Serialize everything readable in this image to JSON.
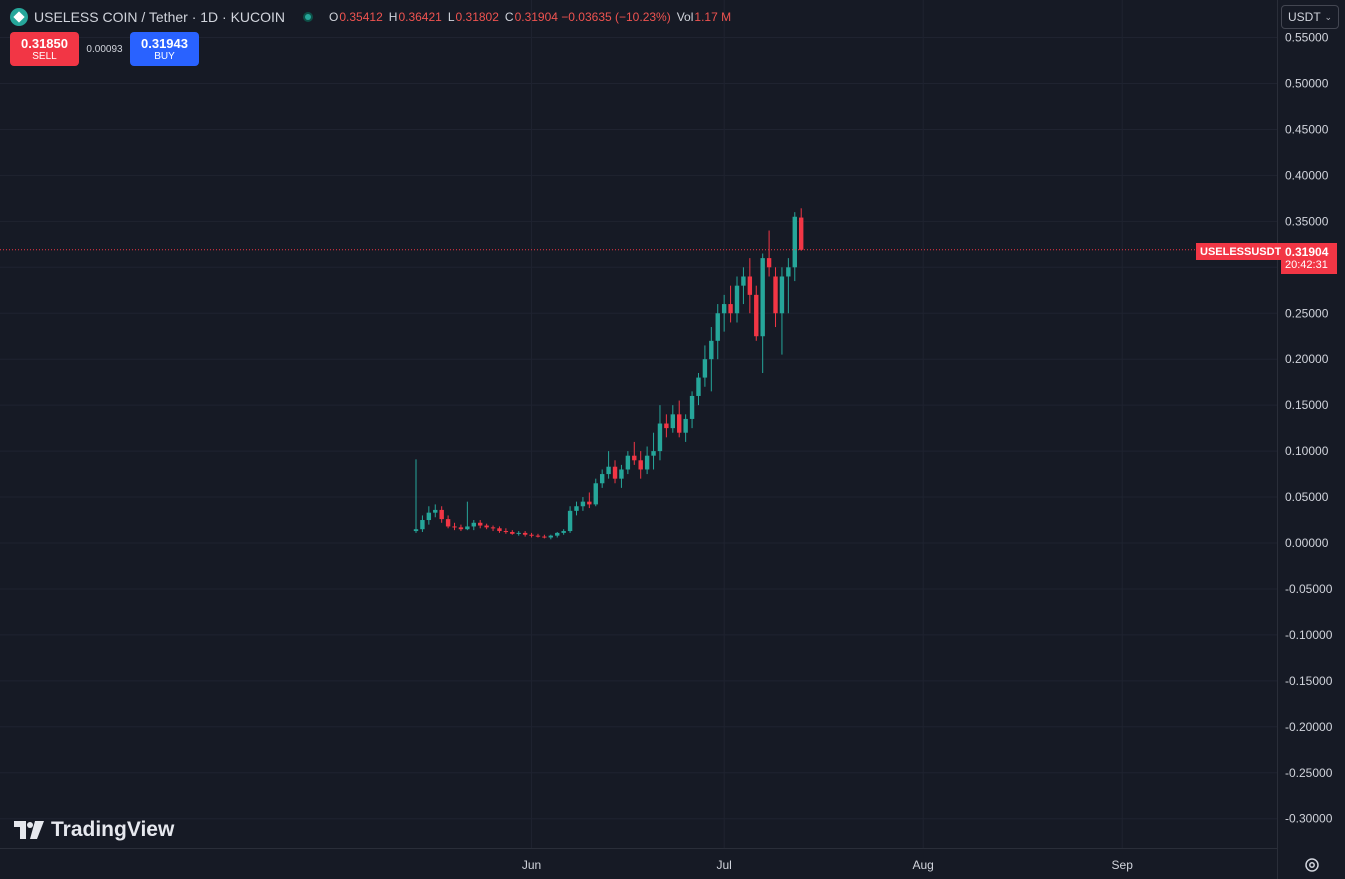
{
  "header": {
    "symbol_title": "USELESS COIN / Tether · 1D · KUCOIN",
    "ohlc": [
      {
        "key": "O",
        "value": "0.35412"
      },
      {
        "key": "H",
        "value": "0.36421"
      },
      {
        "key": "L",
        "value": "0.31802"
      },
      {
        "key": "C",
        "value": "0.31904 −0.03635 (−10.23%)"
      },
      {
        "key": "Vol",
        "value": "1.17 M"
      }
    ]
  },
  "trade": {
    "sell_price": "0.31850",
    "sell_label": "SELL",
    "spread": "0.00093",
    "buy_price": "0.31943",
    "buy_label": "BUY"
  },
  "currency": "USDT",
  "symbol_label": "USELESSUSDT",
  "last_price": "0.31904",
  "countdown": "20:42:31",
  "brand": "TradingView",
  "colors": {
    "background": "#161a25",
    "grid": "#1f2330",
    "up": "#26a69a",
    "down": "#f23645",
    "accent": "#2962ff",
    "axis_text": "#d1d4dc"
  },
  "chart_data": {
    "type": "candlestick",
    "y_axis": {
      "min": -0.3,
      "max": 0.55,
      "ticks": [
        "0.55000",
        "0.50000",
        "0.45000",
        "0.40000",
        "0.35000",
        "0.30000",
        "0.25000",
        "0.20000",
        "0.15000",
        "0.10000",
        "0.05000",
        "0.00000",
        "-0.05000",
        "-0.10000",
        "-0.15000",
        "-0.20000",
        "-0.25000",
        "-0.30000"
      ],
      "tick_values": [
        0.55,
        0.5,
        0.45,
        0.4,
        0.35,
        0.3,
        0.25,
        0.2,
        0.15,
        0.1,
        0.05,
        0,
        -0.05,
        -0.1,
        -0.15,
        -0.2,
        -0.25,
        -0.3
      ]
    },
    "x_axis": {
      "ticks": [
        "Jun",
        "Jul",
        "Aug",
        "Sep"
      ],
      "tick_days": [
        18,
        48,
        79,
        110
      ]
    },
    "grid": true,
    "last_price": 0.31904,
    "candles": [
      {
        "day": 0,
        "o": 0.013,
        "h": 0.091,
        "l": 0.011,
        "c": 0.015
      },
      {
        "day": 1,
        "o": 0.015,
        "h": 0.03,
        "l": 0.012,
        "c": 0.025
      },
      {
        "day": 2,
        "o": 0.025,
        "h": 0.04,
        "l": 0.02,
        "c": 0.033
      },
      {
        "day": 3,
        "o": 0.033,
        "h": 0.042,
        "l": 0.028,
        "c": 0.036
      },
      {
        "day": 4,
        "o": 0.036,
        "h": 0.04,
        "l": 0.022,
        "c": 0.026
      },
      {
        "day": 5,
        "o": 0.026,
        "h": 0.03,
        "l": 0.016,
        "c": 0.018
      },
      {
        "day": 6,
        "o": 0.018,
        "h": 0.022,
        "l": 0.014,
        "c": 0.017
      },
      {
        "day": 7,
        "o": 0.017,
        "h": 0.02,
        "l": 0.013,
        "c": 0.015
      },
      {
        "day": 8,
        "o": 0.015,
        "h": 0.045,
        "l": 0.014,
        "c": 0.018
      },
      {
        "day": 9,
        "o": 0.018,
        "h": 0.025,
        "l": 0.014,
        "c": 0.022
      },
      {
        "day": 10,
        "o": 0.022,
        "h": 0.025,
        "l": 0.016,
        "c": 0.019
      },
      {
        "day": 11,
        "o": 0.019,
        "h": 0.021,
        "l": 0.015,
        "c": 0.017
      },
      {
        "day": 12,
        "o": 0.017,
        "h": 0.019,
        "l": 0.013,
        "c": 0.016
      },
      {
        "day": 13,
        "o": 0.016,
        "h": 0.018,
        "l": 0.011,
        "c": 0.013
      },
      {
        "day": 14,
        "o": 0.013,
        "h": 0.016,
        "l": 0.01,
        "c": 0.012
      },
      {
        "day": 15,
        "o": 0.012,
        "h": 0.014,
        "l": 0.009,
        "c": 0.01
      },
      {
        "day": 16,
        "o": 0.01,
        "h": 0.013,
        "l": 0.008,
        "c": 0.011
      },
      {
        "day": 17,
        "o": 0.011,
        "h": 0.013,
        "l": 0.007,
        "c": 0.009
      },
      {
        "day": 18,
        "o": 0.009,
        "h": 0.011,
        "l": 0.006,
        "c": 0.008
      },
      {
        "day": 19,
        "o": 0.008,
        "h": 0.01,
        "l": 0.006,
        "c": 0.007
      },
      {
        "day": 20,
        "o": 0.007,
        "h": 0.009,
        "l": 0.005,
        "c": 0.006
      },
      {
        "day": 21,
        "o": 0.006,
        "h": 0.009,
        "l": 0.004,
        "c": 0.008
      },
      {
        "day": 22,
        "o": 0.008,
        "h": 0.012,
        "l": 0.006,
        "c": 0.011
      },
      {
        "day": 23,
        "o": 0.011,
        "h": 0.015,
        "l": 0.009,
        "c": 0.013
      },
      {
        "day": 24,
        "o": 0.013,
        "h": 0.04,
        "l": 0.011,
        "c": 0.035
      },
      {
        "day": 25,
        "o": 0.035,
        "h": 0.045,
        "l": 0.03,
        "c": 0.04
      },
      {
        "day": 26,
        "o": 0.04,
        "h": 0.05,
        "l": 0.035,
        "c": 0.045
      },
      {
        "day": 27,
        "o": 0.045,
        "h": 0.055,
        "l": 0.038,
        "c": 0.042
      },
      {
        "day": 28,
        "o": 0.042,
        "h": 0.07,
        "l": 0.04,
        "c": 0.065
      },
      {
        "day": 29,
        "o": 0.065,
        "h": 0.08,
        "l": 0.06,
        "c": 0.075
      },
      {
        "day": 30,
        "o": 0.075,
        "h": 0.1,
        "l": 0.07,
        "c": 0.083
      },
      {
        "day": 31,
        "o": 0.083,
        "h": 0.09,
        "l": 0.065,
        "c": 0.07
      },
      {
        "day": 32,
        "o": 0.07,
        "h": 0.085,
        "l": 0.06,
        "c": 0.08
      },
      {
        "day": 33,
        "o": 0.08,
        "h": 0.1,
        "l": 0.075,
        "c": 0.095
      },
      {
        "day": 34,
        "o": 0.095,
        "h": 0.11,
        "l": 0.085,
        "c": 0.09
      },
      {
        "day": 35,
        "o": 0.09,
        "h": 0.1,
        "l": 0.07,
        "c": 0.08
      },
      {
        "day": 36,
        "o": 0.08,
        "h": 0.105,
        "l": 0.075,
        "c": 0.095
      },
      {
        "day": 37,
        "o": 0.095,
        "h": 0.12,
        "l": 0.08,
        "c": 0.1
      },
      {
        "day": 38,
        "o": 0.1,
        "h": 0.15,
        "l": 0.09,
        "c": 0.13
      },
      {
        "day": 39,
        "o": 0.13,
        "h": 0.14,
        "l": 0.115,
        "c": 0.125
      },
      {
        "day": 40,
        "o": 0.125,
        "h": 0.15,
        "l": 0.12,
        "c": 0.14
      },
      {
        "day": 41,
        "o": 0.14,
        "h": 0.155,
        "l": 0.115,
        "c": 0.12
      },
      {
        "day": 42,
        "o": 0.12,
        "h": 0.14,
        "l": 0.11,
        "c": 0.135
      },
      {
        "day": 43,
        "o": 0.135,
        "h": 0.165,
        "l": 0.125,
        "c": 0.16
      },
      {
        "day": 44,
        "o": 0.16,
        "h": 0.185,
        "l": 0.15,
        "c": 0.18
      },
      {
        "day": 45,
        "o": 0.18,
        "h": 0.215,
        "l": 0.17,
        "c": 0.2
      },
      {
        "day": 46,
        "o": 0.2,
        "h": 0.235,
        "l": 0.165,
        "c": 0.22
      },
      {
        "day": 47,
        "o": 0.22,
        "h": 0.26,
        "l": 0.2,
        "c": 0.25
      },
      {
        "day": 48,
        "o": 0.25,
        "h": 0.27,
        "l": 0.23,
        "c": 0.26
      },
      {
        "day": 49,
        "o": 0.26,
        "h": 0.28,
        "l": 0.24,
        "c": 0.25
      },
      {
        "day": 50,
        "o": 0.25,
        "h": 0.29,
        "l": 0.24,
        "c": 0.28
      },
      {
        "day": 51,
        "o": 0.28,
        "h": 0.3,
        "l": 0.26,
        "c": 0.29
      },
      {
        "day": 52,
        "o": 0.29,
        "h": 0.31,
        "l": 0.25,
        "c": 0.27
      },
      {
        "day": 53,
        "o": 0.27,
        "h": 0.28,
        "l": 0.22,
        "c": 0.225
      },
      {
        "day": 54,
        "o": 0.225,
        "h": 0.315,
        "l": 0.185,
        "c": 0.31
      },
      {
        "day": 55,
        "o": 0.31,
        "h": 0.34,
        "l": 0.29,
        "c": 0.3
      },
      {
        "day": 56,
        "o": 0.29,
        "h": 0.3,
        "l": 0.235,
        "c": 0.25
      },
      {
        "day": 57,
        "o": 0.25,
        "h": 0.3,
        "l": 0.205,
        "c": 0.29
      },
      {
        "day": 58,
        "o": 0.29,
        "h": 0.31,
        "l": 0.25,
        "c": 0.3
      },
      {
        "day": 59,
        "o": 0.3,
        "h": 0.36,
        "l": 0.285,
        "c": 0.355
      },
      {
        "day": 60,
        "o": 0.35412,
        "h": 0.36421,
        "l": 0.31802,
        "c": 0.31904
      }
    ]
  }
}
